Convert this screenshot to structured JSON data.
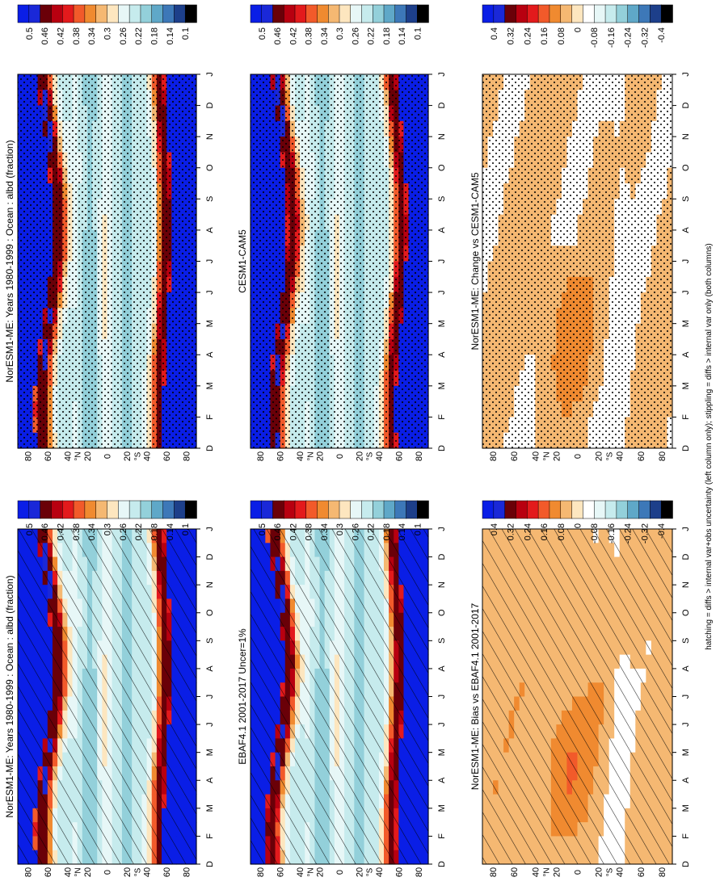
{
  "figure": {
    "caption": "hatching = diffs > internal var+obs uncertainty (left column only); stippling = diffs > internal var only (both columns)"
  },
  "chart_data": [
    {
      "type": "heatmap",
      "panel": "left-top",
      "title": "NorESM1-ME: Years 1980-1999 : Ocean : albd (fraction)",
      "xlabel": "",
      "ylabel": "",
      "months": [
        "J",
        "F",
        "M",
        "A",
        "M",
        "J",
        "J",
        "A",
        "S",
        "O",
        "N",
        "D",
        "J"
      ],
      "latitudes": [
        "80",
        "60",
        "40",
        "20",
        "0",
        "20",
        "40",
        "60",
        "80"
      ],
      "lat_range": [
        -90,
        90
      ],
      "colorbar": {
        "levels": [
          "0.5",
          "0.46",
          "0.42",
          "0.38",
          "0.34",
          "0.3",
          "0.26",
          "0.22",
          "0.18",
          "0.14",
          "0.1"
        ],
        "scheme": "absolute"
      },
      "overlay": "hatching",
      "profile": {
        "nh_peak_lat": 58,
        "sh_peak_lat": -56,
        "sh_seasonal_amp": 4,
        "nh_seasonal_amp": 9
      }
    },
    {
      "type": "heatmap",
      "panel": "right-top",
      "title": "NorESM1-ME: Years 1980-1999 : Ocean : albd (fraction)",
      "xlabel": "",
      "ylabel": "",
      "months": [
        "J",
        "F",
        "M",
        "A",
        "M",
        "J",
        "J",
        "A",
        "S",
        "O",
        "N",
        "D",
        "J"
      ],
      "latitudes": [
        "80",
        "60",
        "40",
        "20",
        "0",
        "20",
        "40",
        "60",
        "80"
      ],
      "lat_range": [
        -90,
        90
      ],
      "colorbar": {
        "levels": [
          "0.5",
          "0.46",
          "0.42",
          "0.38",
          "0.34",
          "0.3",
          "0.26",
          "0.22",
          "0.18",
          "0.14",
          "0.1"
        ],
        "scheme": "absolute"
      },
      "overlay": "stippling",
      "profile": {
        "nh_peak_lat": 58,
        "sh_peak_lat": -56,
        "sh_seasonal_amp": 4,
        "nh_seasonal_amp": 9
      }
    },
    {
      "type": "heatmap",
      "panel": "left-middle",
      "title": "EBAF4.1 2001-2017 Uncer=1%",
      "xlabel": "",
      "ylabel": "",
      "months": [
        "J",
        "F",
        "M",
        "A",
        "M",
        "J",
        "J",
        "A",
        "S",
        "O",
        "N",
        "D",
        "J"
      ],
      "latitudes": [
        "80",
        "60",
        "40",
        "20",
        "0",
        "20",
        "40",
        "60",
        "80"
      ],
      "lat_range": [
        -90,
        90
      ],
      "colorbar": {
        "levels": [
          "0.5",
          "0.46",
          "0.42",
          "0.38",
          "0.34",
          "0.3",
          "0.26",
          "0.22",
          "0.18",
          "0.14",
          "0.1"
        ],
        "scheme": "absolute"
      },
      "overlay": "hatching",
      "profile": {
        "nh_peak_lat": 60,
        "sh_peak_lat": -57,
        "sh_seasonal_amp": 4,
        "nh_seasonal_amp": 9
      }
    },
    {
      "type": "heatmap",
      "panel": "right-middle",
      "title": "CESM1-CAM5",
      "xlabel": "",
      "ylabel": "",
      "months": [
        "J",
        "F",
        "M",
        "A",
        "M",
        "J",
        "J",
        "A",
        "S",
        "O",
        "N",
        "D",
        "J"
      ],
      "latitudes": [
        "80",
        "60",
        "40",
        "20",
        "0",
        "20",
        "40",
        "60",
        "80"
      ],
      "lat_range": [
        -90,
        90
      ],
      "colorbar": {
        "levels": [
          "0.5",
          "0.46",
          "0.42",
          "0.38",
          "0.34",
          "0.3",
          "0.26",
          "0.22",
          "0.18",
          "0.14",
          "0.1"
        ],
        "scheme": "absolute"
      },
      "overlay": "stippling",
      "profile": {
        "nh_peak_lat": 56,
        "sh_peak_lat": -58,
        "sh_seasonal_amp": 6,
        "nh_seasonal_amp": 9
      }
    },
    {
      "type": "heatmap",
      "panel": "left-bottom",
      "title": "NorESM1-ME: Bias vs EBAF4.1 2001-2017",
      "xlabel": "",
      "ylabel": "",
      "months": [
        "J",
        "F",
        "M",
        "A",
        "M",
        "J",
        "J",
        "A",
        "S",
        "O",
        "N",
        "D",
        "J"
      ],
      "latitudes": [
        "80",
        "60",
        "40",
        "20",
        "0",
        "20",
        "40",
        "60",
        "80"
      ],
      "lat_range": [
        -90,
        90
      ],
      "colorbar": {
        "levels": [
          "0.4",
          "0.32",
          "0.24",
          "0.16",
          "0.08",
          "0",
          "-0.08",
          "-0.16",
          "-0.24",
          "-0.32",
          "-0.4"
        ],
        "scheme": "difference"
      },
      "overlay": "hatching",
      "profile": {
        "mean_diff": 0.06
      }
    },
    {
      "type": "heatmap",
      "panel": "right-bottom",
      "title": "NorESM1-ME: Change vs CESM1-CAM5",
      "xlabel": "",
      "ylabel": "",
      "months": [
        "J",
        "F",
        "M",
        "A",
        "M",
        "J",
        "J",
        "A",
        "S",
        "O",
        "N",
        "D",
        "J"
      ],
      "latitudes": [
        "80",
        "60",
        "40",
        "20",
        "0",
        "20",
        "40",
        "60",
        "80"
      ],
      "lat_range": [
        -90,
        90
      ],
      "colorbar": {
        "levels": [
          "0.4",
          "0.32",
          "0.24",
          "0.16",
          "0.08",
          "0",
          "-0.08",
          "-0.16",
          "-0.24",
          "-0.32",
          "-0.4"
        ],
        "scheme": "difference"
      },
      "overlay": "stippling",
      "profile": {
        "mean_diff": 0.05
      }
    }
  ],
  "colors": {
    "absolute": [
      "#0a1ee6",
      "#1a28d8",
      "#6a0008",
      "#b80010",
      "#e31a1c",
      "#f25a2a",
      "#f08a30",
      "#f5b872",
      "#fde6bf",
      "#e7f7f7",
      "#c6ebed",
      "#93d0da",
      "#5fa8c8",
      "#3d78b8",
      "#1d3f8a",
      "#000000"
    ],
    "difference": [
      "#0a1ee6",
      "#1a28d8",
      "#6a0008",
      "#b80010",
      "#e31a1c",
      "#f25a2a",
      "#f08a30",
      "#f5b872",
      "#fde6bf",
      "#ffffff",
      "#e7f7f7",
      "#c6ebed",
      "#93d0da",
      "#5fa8c8",
      "#3d78b8",
      "#1d3f8a",
      "#000000"
    ]
  }
}
